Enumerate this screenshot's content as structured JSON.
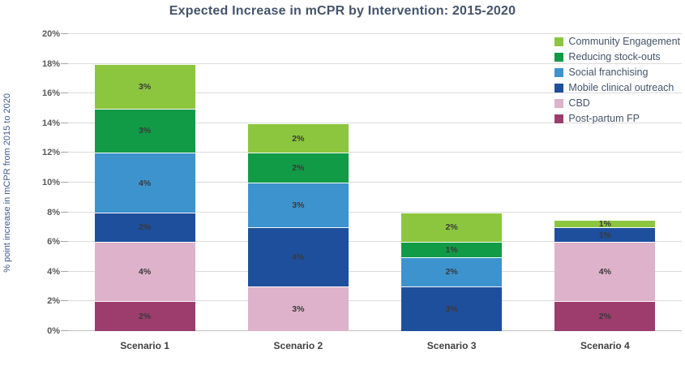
{
  "chart_data": {
    "type": "bar",
    "variant": "stacked",
    "title": "Expected Increase in mCPR by Intervention: 2015-2020",
    "xlabel": "",
    "ylabel": "% point increase  in mCPR from 2015 to 2020",
    "ylim": [
      0,
      20
    ],
    "ytick_step": 2,
    "ytick_labels": [
      "0%",
      "2%",
      "4%",
      "6%",
      "8%",
      "10%",
      "12%",
      "14%",
      "16%",
      "18%",
      "20%"
    ],
    "grid": true,
    "legend_position": "top-right",
    "categories": [
      "Scenario 1",
      "Scenario 2",
      "Scenario 3",
      "Scenario 4"
    ],
    "series": [
      {
        "name": "Post-partum FP",
        "color": "#9D3D6D",
        "values": [
          2,
          0,
          0,
          2
        ],
        "labels": [
          "2%",
          "",
          "",
          "2%"
        ]
      },
      {
        "name": "CBD",
        "color": "#DDB2CA",
        "values": [
          4,
          3,
          0,
          4
        ],
        "labels": [
          "4%",
          "3%",
          "",
          "4%"
        ]
      },
      {
        "name": "Mobile clinical outreach",
        "color": "#1E4F9C",
        "values": [
          2,
          4,
          3,
          1
        ],
        "labels": [
          "2%",
          "4%",
          "3%",
          "1%"
        ]
      },
      {
        "name": "Social franchising",
        "color": "#3D93CE",
        "values": [
          4,
          3,
          2,
          0
        ],
        "labels": [
          "4%",
          "3%",
          "2%",
          ""
        ]
      },
      {
        "name": "Reducing stock-outs",
        "color": "#119B47",
        "values": [
          3,
          2,
          1,
          0
        ],
        "labels": [
          "3%",
          "2%",
          "1%",
          ""
        ]
      },
      {
        "name": "Community Engagement",
        "color": "#8CC63F",
        "values": [
          3,
          2,
          2,
          0.5
        ],
        "labels": [
          "3%",
          "2%",
          "2%",
          "1%"
        ]
      }
    ],
    "bar_totals": [
      18,
      14,
      8,
      7.5
    ],
    "legend_order": [
      "Community Engagement",
      "Reducing stock-outs",
      "Social franchising",
      "Mobile clinical outreach",
      "CBD",
      "Post-partum FP"
    ]
  },
  "colors": {
    "background": "#FFFFFF",
    "grid": "#DCDCDC",
    "axis_line": "#C0C0C0",
    "title_text": "#44546A",
    "y_title_text": "#3D5A8C",
    "tick_text": "#595959",
    "x_label_text": "#404040",
    "segment_label_text": "#3A3A3A",
    "legend_text": "#44546A"
  }
}
